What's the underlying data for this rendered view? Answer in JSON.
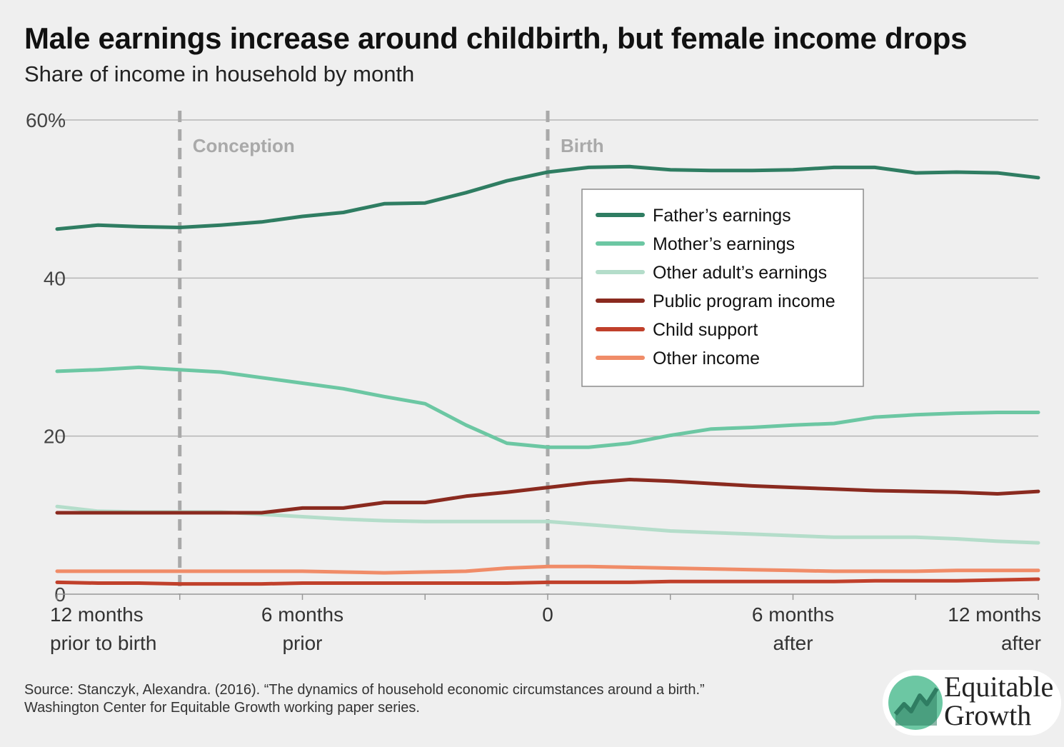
{
  "title": "Male earnings increase around childbirth, but female income drops",
  "subtitle": "Share of income in household by month",
  "source_line1": "Source: Stanczyk, Alexandra. (2016). “The dynamics of household economic circumstances around a birth.”",
  "source_line2": "Washington Center for Equitable Growth working paper series.",
  "logo": {
    "line1": "Equitable",
    "line2": "Growth"
  },
  "chart_data": {
    "type": "line",
    "title": "Male earnings increase around childbirth, but female income drops",
    "subtitle": "Share of income in household by month",
    "xlabel": "",
    "ylabel": "",
    "x": [
      -12,
      -11,
      -10,
      -9,
      -8,
      -7,
      -6,
      -5,
      -4,
      -3,
      -2,
      -1,
      0,
      1,
      2,
      3,
      4,
      5,
      6,
      7,
      8,
      9,
      10,
      11,
      12
    ],
    "xlim": [
      -12,
      12
    ],
    "ylim": [
      0,
      60
    ],
    "y_ticks": [
      0,
      20,
      40,
      60
    ],
    "y_tick_labels": [
      "0",
      "20",
      "40",
      "60%"
    ],
    "x_ticks": [
      -12,
      -9,
      -6,
      -3,
      0,
      3,
      6,
      9,
      12
    ],
    "x_tick_labels": [
      {
        "x": -12,
        "lines": [
          "12 months",
          "prior to birth"
        ]
      },
      {
        "x": -6,
        "lines": [
          "6 months",
          "prior"
        ]
      },
      {
        "x": 0,
        "lines": [
          "0"
        ]
      },
      {
        "x": 6,
        "lines": [
          "6 months",
          "after"
        ]
      },
      {
        "x": 12,
        "lines": [
          "12 months",
          "after"
        ]
      }
    ],
    "grid": true,
    "legend_position": "top-right",
    "annotations": [
      {
        "x": -9,
        "label": "Conception",
        "style": "dashed-vertical"
      },
      {
        "x": 0,
        "label": "Birth",
        "style": "dashed-vertical"
      }
    ],
    "series": [
      {
        "name": "Father’s earnings",
        "color": "#2f7d62",
        "width": 5,
        "values": [
          46.2,
          46.7,
          46.5,
          46.4,
          46.7,
          47.1,
          47.8,
          48.3,
          49.4,
          49.5,
          50.8,
          52.3,
          53.4,
          54.0,
          54.1,
          53.7,
          53.6,
          53.6,
          53.7,
          54.0,
          54.0,
          53.3,
          53.4,
          53.3,
          52.7
        ]
      },
      {
        "name": "Mother’s earnings",
        "color": "#6cc7a3",
        "width": 5,
        "values": [
          28.2,
          28.4,
          28.7,
          28.4,
          28.1,
          27.4,
          26.7,
          26.0,
          25.0,
          24.1,
          21.4,
          19.1,
          18.6,
          18.6,
          19.1,
          20.1,
          20.9,
          21.1,
          21.4,
          21.6,
          22.4,
          22.7,
          22.9,
          23.0,
          23.0
        ]
      },
      {
        "name": "Other adult’s earnings",
        "color": "#b4ddca",
        "width": 5,
        "values": [
          11.1,
          10.5,
          10.4,
          10.4,
          10.4,
          10.1,
          9.8,
          9.5,
          9.3,
          9.2,
          9.2,
          9.2,
          9.2,
          8.8,
          8.4,
          8.0,
          7.8,
          7.6,
          7.4,
          7.2,
          7.2,
          7.2,
          7.0,
          6.7,
          6.5
        ]
      },
      {
        "name": "Public program income",
        "color": "#8a2a1f",
        "width": 5,
        "values": [
          10.3,
          10.3,
          10.3,
          10.3,
          10.3,
          10.3,
          10.9,
          10.9,
          11.6,
          11.6,
          12.4,
          12.9,
          13.5,
          14.1,
          14.5,
          14.3,
          14.0,
          13.7,
          13.5,
          13.3,
          13.1,
          13.0,
          12.9,
          12.7,
          13.0
        ]
      },
      {
        "name": "Child support",
        "color": "#c0402b",
        "width": 5,
        "values": [
          1.5,
          1.4,
          1.4,
          1.3,
          1.3,
          1.3,
          1.4,
          1.4,
          1.4,
          1.4,
          1.4,
          1.4,
          1.5,
          1.5,
          1.5,
          1.6,
          1.6,
          1.6,
          1.6,
          1.6,
          1.7,
          1.7,
          1.7,
          1.8,
          1.9
        ]
      },
      {
        "name": "Other income",
        "color": "#f08c68",
        "width": 5,
        "values": [
          2.9,
          2.9,
          2.9,
          2.9,
          2.9,
          2.9,
          2.9,
          2.8,
          2.7,
          2.8,
          2.9,
          3.3,
          3.5,
          3.5,
          3.4,
          3.3,
          3.2,
          3.1,
          3.0,
          2.9,
          2.9,
          2.9,
          3.0,
          3.0,
          3.0
        ]
      }
    ]
  }
}
